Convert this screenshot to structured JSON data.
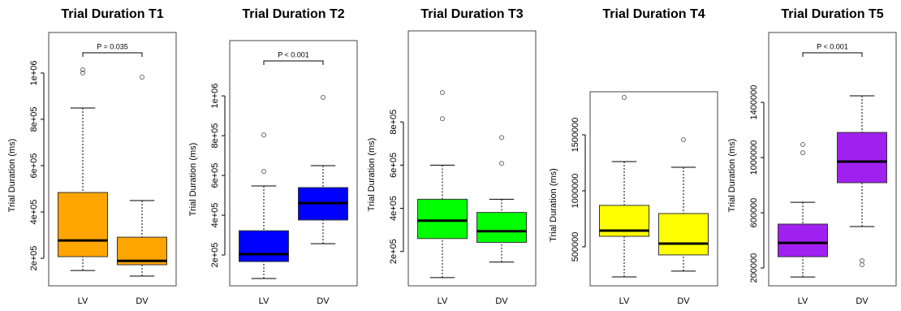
{
  "chart_data": [
    {
      "type": "box",
      "title": "Trial Duration T1",
      "ylabel": "Trial Duration (ms)",
      "categories": [
        "LV",
        "DV"
      ],
      "color": "#FFA500",
      "boxes": [
        {
          "min": 147000,
          "q1": 207000,
          "median": 277000,
          "q3": 484000,
          "max": 849000,
          "outliers": [
            1014000,
            1000000
          ]
        },
        {
          "min": 123000,
          "q1": 172000,
          "median": 189000,
          "q3": 291000,
          "max": 449000,
          "outliers": [
            982000
          ]
        }
      ],
      "ylim": [
        81000,
        1175000
      ],
      "yticks": [
        {
          "value": 200000,
          "label": "2e+05"
        },
        {
          "value": 400000,
          "label": "4e+05"
        },
        {
          "value": 600000,
          "label": "6e+05"
        },
        {
          "value": 800000,
          "label": "8e+05"
        },
        {
          "value": 1000000,
          "label": "1e+06"
        }
      ],
      "annotation": "P = 0.035"
    },
    {
      "type": "box",
      "title": "Trial Duration T2",
      "ylabel": "Trial Duration (ms)",
      "categories": [
        "LV",
        "DV"
      ],
      "color": "#0000FF",
      "boxes": [
        {
          "min": 82000,
          "q1": 167000,
          "median": 204000,
          "q3": 322000,
          "max": 547000,
          "outliers": [
            804000,
            620000
          ]
        },
        {
          "min": 257000,
          "q1": 376000,
          "median": 461000,
          "q3": 539000,
          "max": 649000,
          "outliers": [
            992000
          ]
        }
      ],
      "ylim": [
        45000,
        1278000
      ],
      "yticks": [
        {
          "value": 200000,
          "label": "2e+05"
        },
        {
          "value": 400000,
          "label": "4e+05"
        },
        {
          "value": 600000,
          "label": "6e+05"
        },
        {
          "value": 800000,
          "label": "8e+05"
        },
        {
          "value": 1000000,
          "label": "1e+06"
        }
      ],
      "annotation": "P < 0.001"
    },
    {
      "type": "box",
      "title": "Trial Duration T3",
      "ylabel": "Trial Duration (ms)",
      "categories": [
        "LV",
        "DV"
      ],
      "color": "#00FF00",
      "boxes": [
        {
          "min": 79000,
          "q1": 260000,
          "median": 343000,
          "q3": 442000,
          "max": 600000,
          "outliers": [
            936000,
            815000
          ]
        },
        {
          "min": 151000,
          "q1": 242000,
          "median": 294000,
          "q3": 381000,
          "max": 442000,
          "outliers": [
            728000,
            608000
          ]
        }
      ],
      "ylim": [
        41000,
        1222000
      ],
      "yticks": [
        {
          "value": 200000,
          "label": "2e+05"
        },
        {
          "value": 400000,
          "label": "4e+05"
        },
        {
          "value": 600000,
          "label": "6e+05"
        },
        {
          "value": 800000,
          "label": "8e+05"
        }
      ]
    },
    {
      "type": "box",
      "title": "Trial Duration T4",
      "ylabel": "Trial Duration (ms)",
      "categories": [
        "LV",
        "DV"
      ],
      "color": "#FFFF00",
      "boxes": [
        {
          "min": 232000,
          "q1": 594000,
          "median": 645000,
          "q3": 870000,
          "max": 1261000,
          "outliers": [
            1833000
          ]
        },
        {
          "min": 283000,
          "q1": 428000,
          "median": 529000,
          "q3": 797000,
          "max": 1210000,
          "outliers": [
            1456000
          ]
        }
      ],
      "ylim": [
        152000,
        1884000
      ],
      "yticks": [
        500000,
        1000000,
        1500000
      ]
    },
    {
      "type": "box",
      "title": "Trial Duration T5",
      "ylabel": "Trial Duration (ms)",
      "categories": [
        "LV",
        "DV"
      ],
      "color": "#A020F0",
      "boxes": [
        {
          "min": 135000,
          "q1": 282000,
          "median": 382000,
          "q3": 518000,
          "max": 676000,
          "outliers": [
            1094000,
            1035000
          ]
        },
        {
          "min": 500000,
          "q1": 818000,
          "median": 971000,
          "q3": 1182000,
          "max": 1447000,
          "outliers": [
            253000,
            224000
          ]
        }
      ],
      "ylim": [
        71000,
        1906000
      ],
      "yticks": [
        200000,
        600000,
        1000000,
        1400000
      ],
      "annotation": "P < 0.001"
    }
  ]
}
